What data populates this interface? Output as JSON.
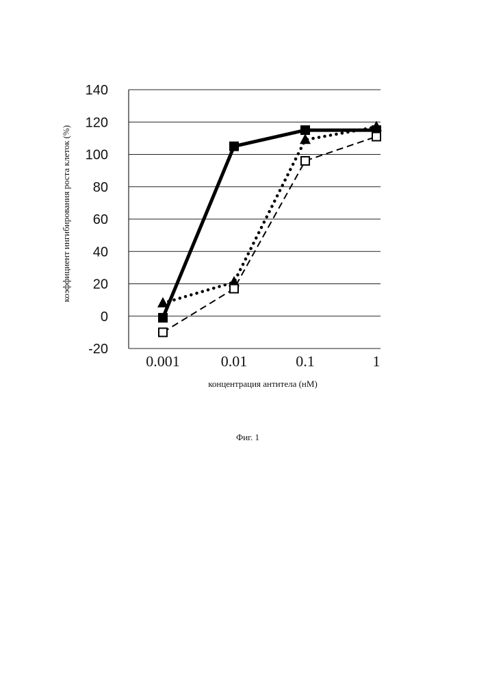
{
  "chart_data": {
    "type": "line",
    "x": [
      "0.001",
      "0.01",
      "0.1",
      "1"
    ],
    "ylim": [
      -20,
      140
    ],
    "yticks": [
      -20,
      0,
      20,
      40,
      60,
      80,
      100,
      120,
      140
    ],
    "xlabel": "концентрация антитела (нМ)",
    "ylabel": "коэффициент ингибирования роста клеток (%)",
    "grid": true,
    "series": [
      {
        "marker": "filled-square",
        "line": "solid",
        "color": "#000000",
        "values": [
          -1,
          105,
          115,
          115
        ]
      },
      {
        "marker": "filled-triangle",
        "line": "dotted",
        "color": "#000000",
        "values": [
          8,
          21,
          109,
          117
        ]
      },
      {
        "marker": "open-square",
        "line": "dashed",
        "color": "#000000",
        "values": [
          -10,
          17,
          96,
          111
        ]
      }
    ]
  },
  "figure_caption": "Фиг. 1"
}
